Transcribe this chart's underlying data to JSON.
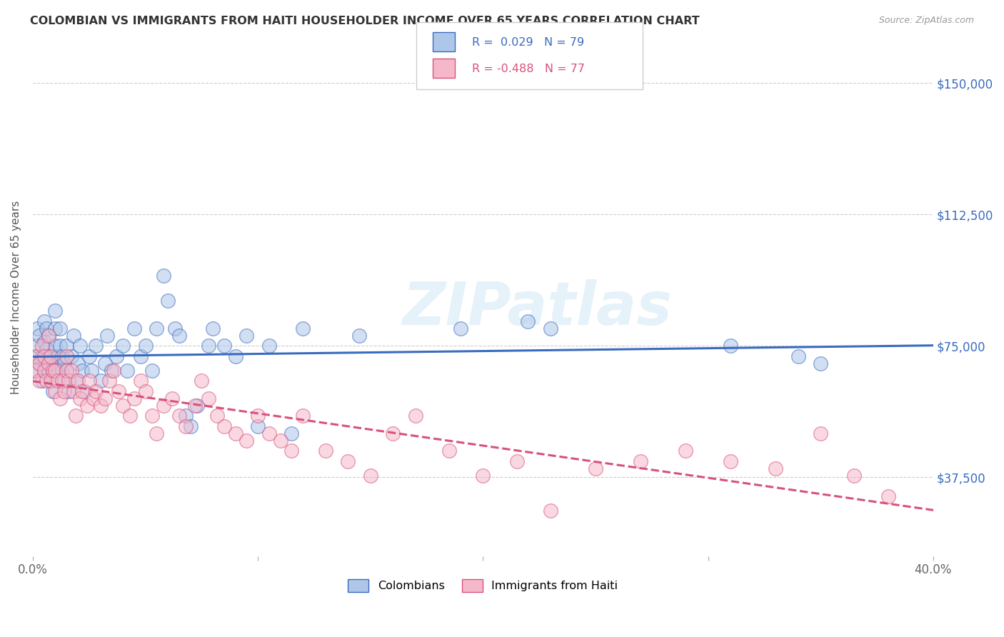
{
  "title": "COLOMBIAN VS IMMIGRANTS FROM HAITI HOUSEHOLDER INCOME OVER 65 YEARS CORRELATION CHART",
  "source": "Source: ZipAtlas.com",
  "ylabel": "Householder Income Over 65 years",
  "watermark": "ZIPatlas",
  "colombian_R": 0.029,
  "colombian_N": 79,
  "haitian_R": -0.488,
  "haitian_N": 77,
  "xlim": [
    0.0,
    0.4
  ],
  "ylim": [
    15000,
    162500
  ],
  "yticks": [
    37500,
    75000,
    112500,
    150000
  ],
  "ytick_labels": [
    "$37,500",
    "$75,000",
    "$112,500",
    "$150,000"
  ],
  "xticks": [
    0.0,
    0.1,
    0.2,
    0.3,
    0.4
  ],
  "xtick_labels": [
    "0.0%",
    "",
    "",
    "",
    "40.0%"
  ],
  "colombian_color": "#aec6e8",
  "haitian_color": "#f5b8cb",
  "colombian_line_color": "#3a6bbf",
  "haitian_line_color": "#d9527a",
  "background_color": "#ffffff",
  "colombian_scatter_x": [
    0.001,
    0.001,
    0.002,
    0.002,
    0.003,
    0.003,
    0.004,
    0.004,
    0.005,
    0.005,
    0.005,
    0.006,
    0.006,
    0.007,
    0.007,
    0.007,
    0.008,
    0.008,
    0.009,
    0.009,
    0.01,
    0.01,
    0.01,
    0.011,
    0.011,
    0.012,
    0.012,
    0.013,
    0.013,
    0.014,
    0.014,
    0.015,
    0.015,
    0.016,
    0.017,
    0.018,
    0.019,
    0.02,
    0.021,
    0.022,
    0.023,
    0.025,
    0.026,
    0.028,
    0.03,
    0.032,
    0.033,
    0.035,
    0.037,
    0.04,
    0.042,
    0.045,
    0.048,
    0.05,
    0.053,
    0.055,
    0.058,
    0.06,
    0.063,
    0.065,
    0.068,
    0.07,
    0.073,
    0.078,
    0.08,
    0.085,
    0.09,
    0.095,
    0.1,
    0.105,
    0.115,
    0.12,
    0.145,
    0.19,
    0.22,
    0.23,
    0.31,
    0.34,
    0.35
  ],
  "colombian_scatter_y": [
    68000,
    72000,
    75000,
    80000,
    70000,
    78000,
    65000,
    72000,
    68000,
    76000,
    82000,
    74000,
    80000,
    68000,
    72000,
    78000,
    65000,
    70000,
    62000,
    68000,
    75000,
    80000,
    85000,
    72000,
    68000,
    75000,
    80000,
    68000,
    72000,
    65000,
    70000,
    75000,
    68000,
    62000,
    72000,
    78000,
    65000,
    70000,
    75000,
    68000,
    62000,
    72000,
    68000,
    75000,
    65000,
    70000,
    78000,
    68000,
    72000,
    75000,
    68000,
    80000,
    72000,
    75000,
    68000,
    80000,
    95000,
    88000,
    80000,
    78000,
    55000,
    52000,
    58000,
    75000,
    80000,
    75000,
    72000,
    78000,
    52000,
    75000,
    50000,
    80000,
    78000,
    80000,
    82000,
    80000,
    75000,
    72000,
    70000
  ],
  "haitian_scatter_x": [
    0.001,
    0.002,
    0.003,
    0.003,
    0.004,
    0.005,
    0.005,
    0.006,
    0.007,
    0.007,
    0.008,
    0.008,
    0.009,
    0.01,
    0.01,
    0.011,
    0.012,
    0.013,
    0.014,
    0.015,
    0.015,
    0.016,
    0.017,
    0.018,
    0.019,
    0.02,
    0.021,
    0.022,
    0.024,
    0.025,
    0.027,
    0.028,
    0.03,
    0.032,
    0.034,
    0.036,
    0.038,
    0.04,
    0.043,
    0.045,
    0.048,
    0.05,
    0.053,
    0.055,
    0.058,
    0.062,
    0.065,
    0.068,
    0.072,
    0.075,
    0.078,
    0.082,
    0.085,
    0.09,
    0.095,
    0.1,
    0.105,
    0.11,
    0.115,
    0.12,
    0.13,
    0.14,
    0.15,
    0.16,
    0.17,
    0.185,
    0.2,
    0.215,
    0.23,
    0.25,
    0.27,
    0.29,
    0.31,
    0.33,
    0.35,
    0.365,
    0.38
  ],
  "haitian_scatter_y": [
    68000,
    72000,
    65000,
    70000,
    75000,
    68000,
    72000,
    65000,
    70000,
    78000,
    65000,
    72000,
    68000,
    62000,
    68000,
    65000,
    60000,
    65000,
    62000,
    68000,
    72000,
    65000,
    68000,
    62000,
    55000,
    65000,
    60000,
    62000,
    58000,
    65000,
    60000,
    62000,
    58000,
    60000,
    65000,
    68000,
    62000,
    58000,
    55000,
    60000,
    65000,
    62000,
    55000,
    50000,
    58000,
    60000,
    55000,
    52000,
    58000,
    65000,
    60000,
    55000,
    52000,
    50000,
    48000,
    55000,
    50000,
    48000,
    45000,
    55000,
    45000,
    42000,
    38000,
    50000,
    55000,
    45000,
    38000,
    42000,
    28000,
    40000,
    42000,
    45000,
    42000,
    40000,
    50000,
    38000,
    32000
  ]
}
